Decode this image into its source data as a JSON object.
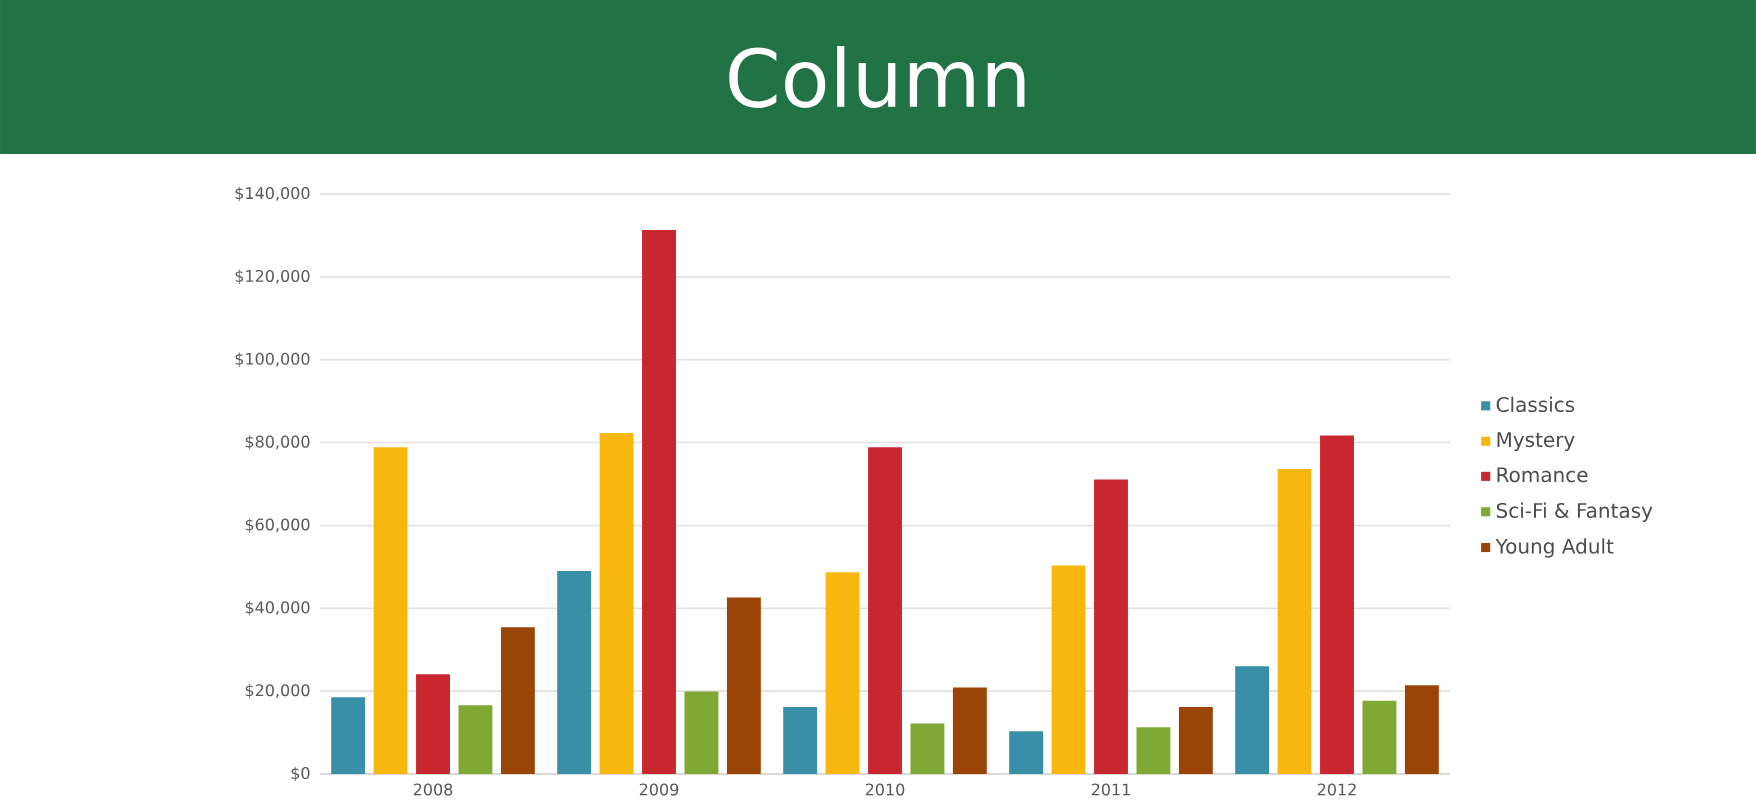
{
  "chart_data": {
    "type": "bar",
    "title": "Column",
    "categories": [
      "2008",
      "2009",
      "2010",
      "2011",
      "2012"
    ],
    "series": [
      {
        "name": "Classics",
        "color": "#3a8fa8",
        "values": [
          18500,
          49000,
          16200,
          10300,
          26000
        ]
      },
      {
        "name": "Mystery",
        "color": "#f8b70f",
        "values": [
          78900,
          82300,
          48700,
          50300,
          73600
        ]
      },
      {
        "name": "Romance",
        "color": "#c8272f",
        "values": [
          24100,
          131300,
          78900,
          71100,
          81700
        ]
      },
      {
        "name": "Sci-Fi & Fantasy",
        "color": "#7fa934",
        "values": [
          16600,
          19900,
          12200,
          11300,
          17700
        ]
      },
      {
        "name": "Young Adult",
        "color": "#9a4407",
        "values": [
          35400,
          42600,
          20900,
          16200,
          21400
        ]
      }
    ],
    "ylim": [
      0,
      140000
    ],
    "yticks": [
      {
        "value": 0,
        "label": "$0"
      },
      {
        "value": 20000,
        "label": "$20,000"
      },
      {
        "value": 40000,
        "label": "$40,000"
      },
      {
        "value": 60000,
        "label": "$60,000"
      },
      {
        "value": 80000,
        "label": "$80,000"
      },
      {
        "value": 100000,
        "label": "$100,000"
      },
      {
        "value": 120000,
        "label": "$120,000"
      },
      {
        "value": 140000,
        "label": "$140,000"
      }
    ],
    "grid": "y",
    "legend": "right"
  }
}
